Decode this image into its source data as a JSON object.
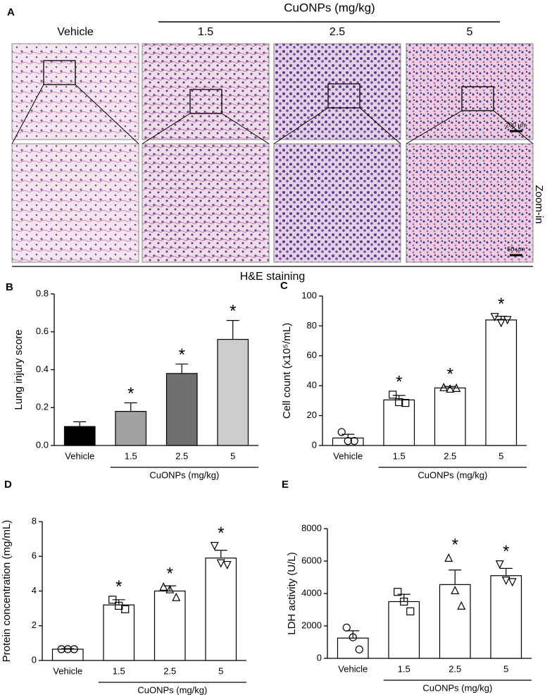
{
  "panel_a": {
    "panel": "A",
    "group_title": "CuONPs (mg/kg)",
    "columns": [
      "Vehicle",
      "1.5",
      "2.5",
      "5"
    ],
    "scale_bar_top": "200 µm",
    "scale_bar_bottom": "50 µm",
    "row_label": "Zoom-in",
    "footer": "H&E staining"
  },
  "chart_data": [
    {
      "type": "bar",
      "panel": "B",
      "ylabel": "Lung injury score",
      "categories": [
        "Vehicle",
        "1.5",
        "2.5",
        "5"
      ],
      "group_label": "CuONPs (mg/kg)",
      "values": [
        0.1,
        0.18,
        0.38,
        0.56
      ],
      "errors": [
        0.025,
        0.045,
        0.05,
        0.1
      ],
      "colors": [
        "#000000",
        "#a0a0a0",
        "#707070",
        "#cccccc"
      ],
      "significance": [
        null,
        "*",
        "*",
        "*"
      ],
      "ylim": [
        0,
        0.8
      ],
      "yticks": [
        {
          "value": 0,
          "label": "0.0"
        },
        0.2,
        0.4,
        0.6,
        0.8
      ]
    },
    {
      "type": "bar",
      "panel": "C",
      "ylabel": "Cell count (x10⁵/mL)",
      "categories": [
        "Vehicle",
        "1.5",
        "2.5",
        "5"
      ],
      "group_label": "CuONPs (mg/kg)",
      "values": [
        5,
        30.5,
        38.5,
        84
      ],
      "errors": [
        2.5,
        3,
        1,
        2.5
      ],
      "colors": [
        "#ffffff",
        "#ffffff",
        "#ffffff",
        "#ffffff"
      ],
      "points": [
        [
          9,
          3,
          3
        ],
        [
          34,
          29,
          28.5
        ],
        [
          39,
          38,
          38.5
        ],
        [
          86,
          82,
          84
        ]
      ],
      "markers": [
        "circle",
        "square",
        "triangle",
        "triangle-down"
      ],
      "significance": [
        null,
        "*",
        "*",
        "*"
      ],
      "ylim": [
        0,
        100
      ],
      "yticks": [
        0,
        20,
        40,
        60,
        80,
        100
      ]
    },
    {
      "type": "bar",
      "panel": "D",
      "ylabel": "Protein concentration (mg/mL)",
      "categories": [
        "Vehicle",
        "1.5",
        "2.5",
        "5"
      ],
      "group_label": "CuONPs (mg/kg)",
      "values": [
        0.65,
        3.2,
        4.0,
        5.9
      ],
      "errors": [
        0.03,
        0.3,
        0.3,
        0.45
      ],
      "colors": [
        "#ffffff",
        "#ffffff",
        "#ffffff",
        "#ffffff"
      ],
      "points": [
        [
          0.65,
          0.65,
          0.65
        ],
        [
          3.5,
          3.15,
          2.95
        ],
        [
          4.25,
          4.1,
          3.65
        ],
        [
          6.6,
          5.6,
          5.5
        ]
      ],
      "markers": [
        "circle",
        "square",
        "triangle",
        "triangle-down"
      ],
      "significance": [
        null,
        "*",
        "*",
        "*"
      ],
      "ylim": [
        0,
        8
      ],
      "yticks": [
        0,
        2,
        4,
        6,
        8
      ]
    },
    {
      "type": "bar",
      "panel": "E",
      "ylabel": "LDH activity (U/L)",
      "categories": [
        "Vehicle",
        "1.5",
        "2.5",
        "5"
      ],
      "group_label": "CuONPs (mg/kg)",
      "values": [
        1250,
        3500,
        4550,
        5100
      ],
      "errors": [
        450,
        450,
        900,
        450
      ],
      "colors": [
        "#ffffff",
        "#ffffff",
        "#ffffff",
        "#ffffff"
      ],
      "points": [
        [
          1900,
          1300,
          550
        ],
        [
          4100,
          3500,
          2900
        ],
        [
          6200,
          4200,
          3250
        ],
        [
          5800,
          4800,
          4700
        ]
      ],
      "markers": [
        "circle",
        "square",
        "triangle",
        "triangle-down"
      ],
      "significance": [
        null,
        null,
        "*",
        "*"
      ],
      "ylim": [
        0,
        8000
      ],
      "yticks": [
        0,
        2000,
        4000,
        6000,
        8000
      ]
    }
  ]
}
